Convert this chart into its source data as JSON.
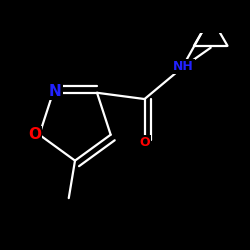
{
  "bg_color": "#000000",
  "bond_color": "#ffffff",
  "atom_colors": {
    "N": "#2222ff",
    "O": "#ff0000",
    "C": "#ffffff",
    "H": "#2222ff"
  },
  "bond_width": 1.6,
  "font_size_atom": 11,
  "font_size_small": 9,
  "figsize": [
    2.5,
    2.5
  ],
  "dpi": 100
}
